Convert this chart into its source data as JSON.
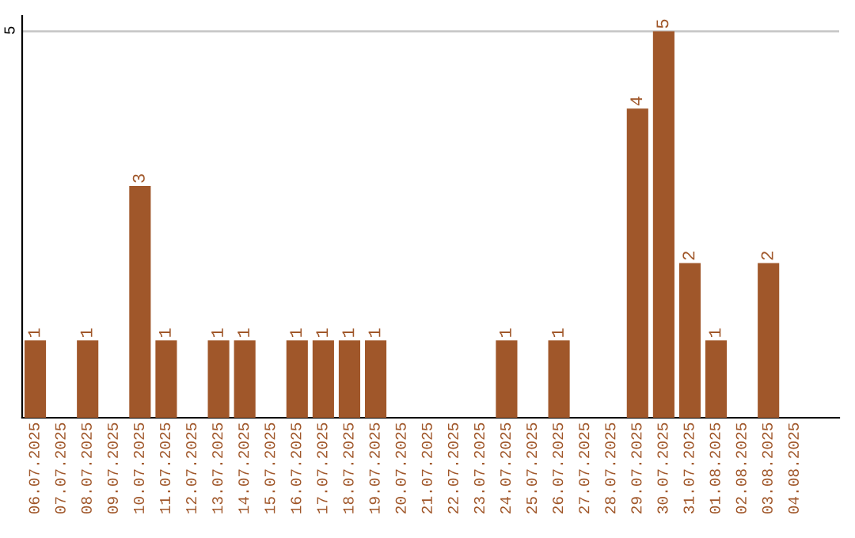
{
  "chart_data": {
    "type": "bar",
    "categories": [
      "06.07.2025",
      "07.07.2025",
      "08.07.2025",
      "09.07.2025",
      "10.07.2025",
      "11.07.2025",
      "12.07.2025",
      "13.07.2025",
      "14.07.2025",
      "15.07.2025",
      "16.07.2025",
      "17.07.2025",
      "18.07.2025",
      "19.07.2025",
      "20.07.2025",
      "21.07.2025",
      "22.07.2025",
      "23.07.2025",
      "24.07.2025",
      "25.07.2025",
      "26.07.2025",
      "27.07.2025",
      "28.07.2025",
      "29.07.2025",
      "30.07.2025",
      "31.07.2025",
      "01.08.2025",
      "02.08.2025",
      "03.08.2025",
      "04.08.2025"
    ],
    "values": [
      1,
      0,
      1,
      0,
      3,
      1,
      0,
      1,
      1,
      0,
      1,
      1,
      1,
      1,
      0,
      0,
      0,
      0,
      1,
      0,
      1,
      0,
      0,
      4,
      5,
      2,
      1,
      0,
      2,
      0
    ],
    "value_labels": [
      "1",
      null,
      "1",
      null,
      "3",
      "1",
      null,
      "1",
      "1",
      null,
      "1",
      "1",
      "1",
      "1",
      null,
      null,
      null,
      null,
      "1",
      null,
      "1",
      null,
      null,
      "4",
      "5",
      "2",
      "1",
      null,
      "2",
      null
    ],
    "color": "#a0572a",
    "ylim": [
      0,
      5.2
    ],
    "yticks": [
      5
    ],
    "grid": "y"
  }
}
